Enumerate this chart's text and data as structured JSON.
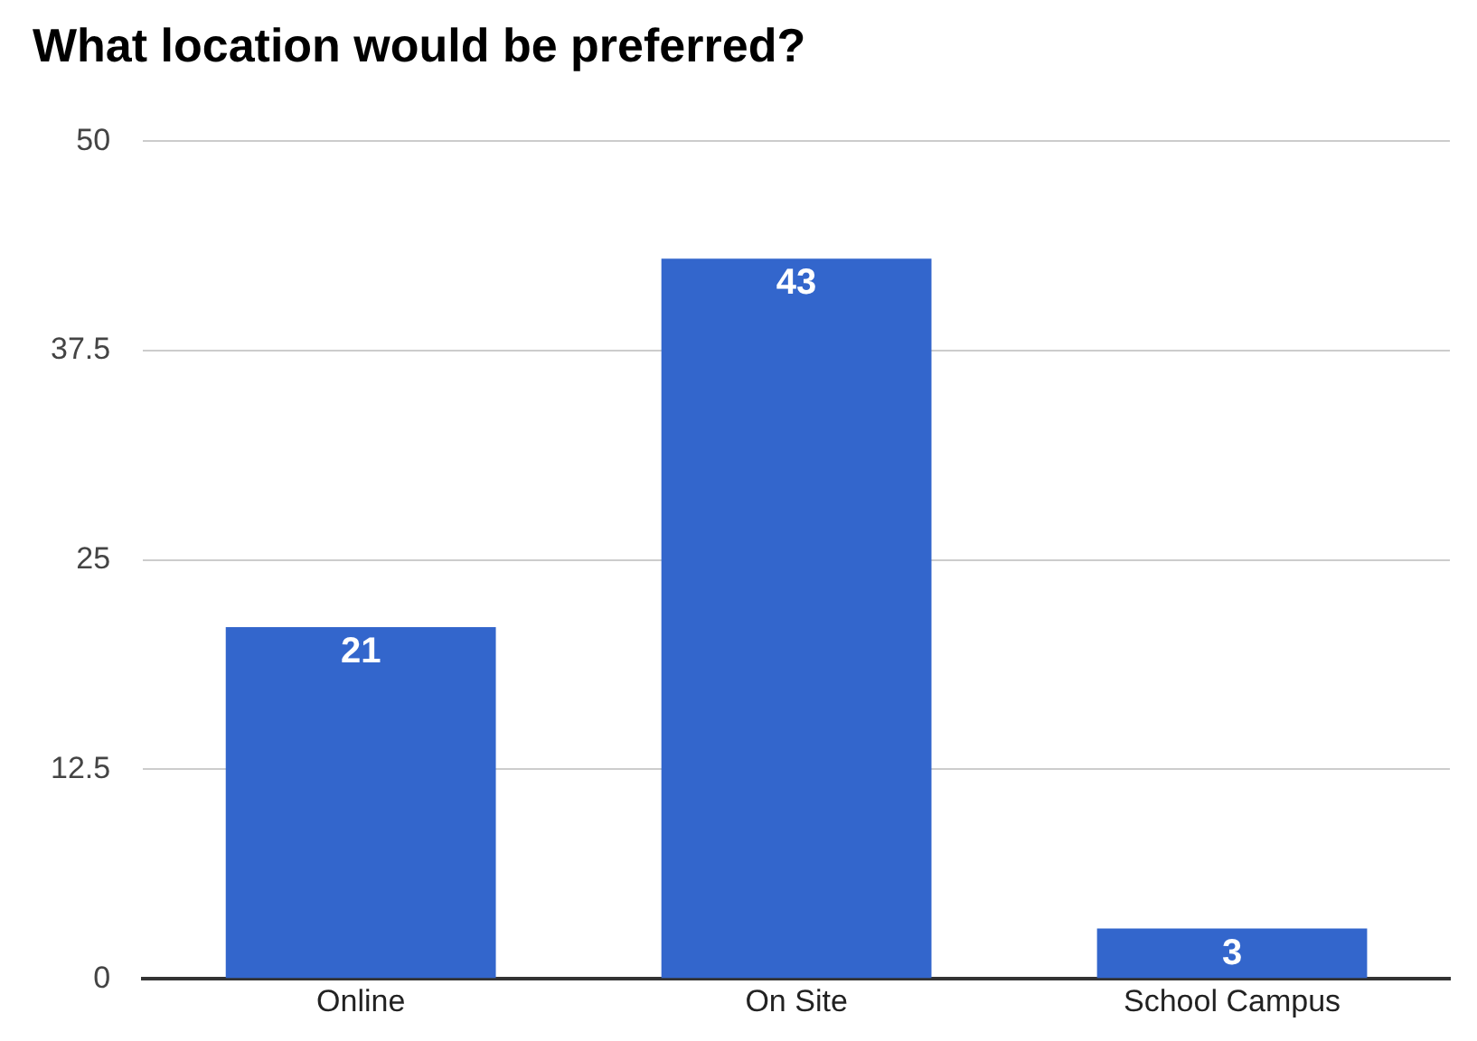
{
  "chart_data": {
    "type": "bar",
    "title": "What location would be preferred?",
    "categories": [
      "Online",
      "On Site",
      "School Campus"
    ],
    "values": [
      21,
      43,
      3
    ],
    "color": "#3366cc",
    "ylim": [
      0,
      50
    ],
    "yticks": [
      0,
      12.5,
      25,
      37.5,
      50
    ],
    "grid": "y",
    "data_labels": true
  }
}
